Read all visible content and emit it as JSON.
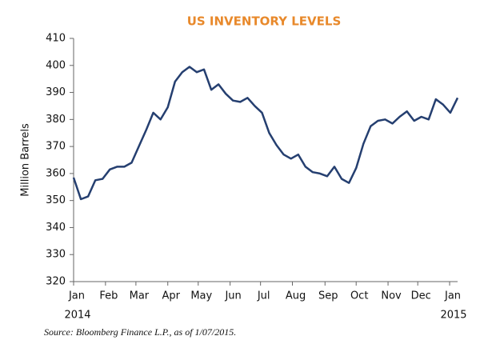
{
  "chart_data": {
    "type": "line",
    "title": "US INVENTORY LEVELS",
    "y_label": "Million Barrels",
    "source": "Source: Bloomberg Finance L.P., as of 1/07/2015.",
    "series": [
      {
        "name": "US Inventory",
        "color": "#253f70",
        "values": [
          358.5,
          350.5,
          351.5,
          357.5,
          358,
          361.5,
          362.5,
          362.5,
          364,
          370,
          376,
          382.5,
          380,
          384.5,
          394,
          397.5,
          399.5,
          397.5,
          398.5,
          391,
          393,
          389.5,
          387,
          386.5,
          388,
          385,
          382.5,
          375,
          370.5,
          367,
          365.5,
          367,
          362.5,
          360.5,
          360,
          359,
          362.5,
          358,
          356.5,
          362,
          371,
          377.5,
          379.5,
          380,
          378.5,
          381,
          383,
          379.5,
          381,
          380,
          387.5,
          385.5,
          382.5,
          388
        ]
      }
    ],
    "xlim": [
      0,
      53
    ],
    "xticks": [
      {
        "value": 0,
        "label": "Jan"
      },
      {
        "value": 4.4,
        "label": "Feb"
      },
      {
        "value": 8.6,
        "label": "Mar"
      },
      {
        "value": 13,
        "label": "Apr"
      },
      {
        "value": 17.2,
        "label": "May"
      },
      {
        "value": 21.6,
        "label": "Jun"
      },
      {
        "value": 25.8,
        "label": "Jul"
      },
      {
        "value": 30.2,
        "label": "Aug"
      },
      {
        "value": 34.7,
        "label": "Sep"
      },
      {
        "value": 39,
        "label": "Oct"
      },
      {
        "value": 43.4,
        "label": "Nov"
      },
      {
        "value": 47.5,
        "label": "Dec"
      },
      {
        "value": 51.9,
        "label": "Jan"
      }
    ],
    "x_year_labels": [
      {
        "value": 0,
        "label": "2014"
      },
      {
        "value": 51.9,
        "label": "2015"
      }
    ],
    "ylim": [
      320,
      410
    ],
    "yticks": [
      320,
      330,
      340,
      350,
      360,
      370,
      380,
      390,
      400,
      410
    ],
    "grid": false
  }
}
